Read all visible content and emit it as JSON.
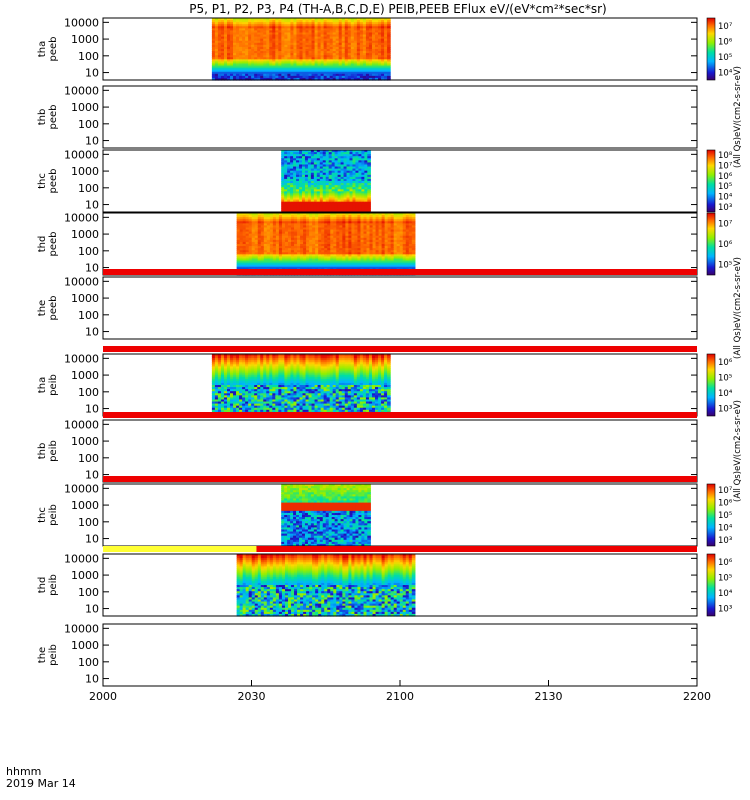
{
  "title": "P5, P1, P2, P3, P4 (TH-A,B,C,D,E) PEIB,PEEB EFlux eV/(eV*cm²*sec*sr)",
  "footer": {
    "row1": "hhmm",
    "row2": "2019 Mar 14"
  },
  "x_axis": {
    "ticks": [
      "2000",
      "2030",
      "2100",
      "2130",
      "2200"
    ]
  },
  "chart_data": {
    "type": "heatmap",
    "x_range_minutes": [
      0,
      120
    ],
    "x_tick_minutes": [
      0,
      30,
      60,
      90,
      120
    ],
    "y_scale": "log",
    "y_ticks": [
      "10",
      "100",
      "1000",
      "10000"
    ],
    "panels": [
      {
        "ylabel": [
          "tha",
          "peeb"
        ],
        "data_start": 22,
        "data_end": 58,
        "pattern": "electron",
        "cbar": "electron",
        "cbar_ticks": [
          "10⁴",
          "10⁵",
          "10⁶",
          "10⁷"
        ]
      },
      {
        "ylabel": [
          "thb",
          "peeb"
        ],
        "pattern": "empty",
        "cbar": "text",
        "cbar_text": "(All Qs)eV/(cm2-s-sr-eV)"
      },
      {
        "ylabel": [
          "thc",
          "peeb"
        ],
        "data_start": 36,
        "data_end": 54,
        "pattern": "electron_c",
        "cbar": "electron_c",
        "cbar_ticks": [
          "10³",
          "10⁴",
          "10⁵",
          "10⁶",
          "10⁷",
          "10⁸"
        ]
      },
      {
        "ylabel": [
          "thd",
          "peeb"
        ],
        "data_start": 27,
        "data_end": 63,
        "pattern": "electron",
        "cbar": "electron",
        "cbar_ticks": [
          "10⁵",
          "10⁶",
          "10⁷"
        ]
      },
      {
        "ylabel": [
          "the",
          "peeb"
        ],
        "pattern": "empty",
        "cbar": "text",
        "cbar_text": "(All Qs)eV/(cm2-s-sr-eV)",
        "bar": "red"
      },
      {
        "ylabel": [
          "tha",
          "peib"
        ],
        "data_start": 22,
        "data_end": 58,
        "pattern": "ion",
        "cbar": "ion",
        "cbar_ticks": [
          "10³",
          "10⁴",
          "10⁵",
          "10⁶"
        ],
        "bar": "red"
      },
      {
        "ylabel": [
          "thb",
          "peib"
        ],
        "pattern": "empty",
        "cbar": "text",
        "cbar_text": "(All Qs)eV/(cm2-s-sr-eV)",
        "bar": "red"
      },
      {
        "ylabel": [
          "thc",
          "peib"
        ],
        "data_start": 36,
        "data_end": 54,
        "pattern": "ion_c",
        "cbar": "ion",
        "cbar_ticks": [
          "10³",
          "10⁴",
          "10⁵",
          "10⁶",
          "10⁷"
        ],
        "bar": "red"
      },
      {
        "ylabel": [
          "thd",
          "peib"
        ],
        "data_start": 27,
        "data_end": 63,
        "pattern": "ion",
        "cbar": "ion",
        "cbar_ticks": [
          "10³",
          "10⁴",
          "10⁵",
          "10⁶"
        ],
        "bar": "yellow_red",
        "bar_yellow_until": 31
      },
      {
        "ylabel": [
          "the",
          "peib"
        ],
        "pattern": "empty",
        "cbar": "none"
      }
    ]
  }
}
